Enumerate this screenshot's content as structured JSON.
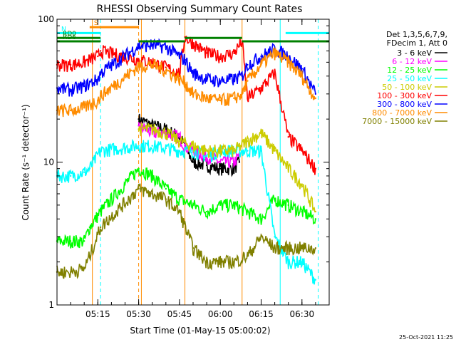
{
  "chart_data": {
    "type": "line",
    "title": "RHESSI Observing Summary Count Rates",
    "xlabel": "Start Time (01-May-15 05:00:02)",
    "ylabel": "Count Rate (s⁻¹ detector⁻¹)",
    "footer_timestamp": "25-Oct-2021 11:25",
    "y_scale": "log",
    "ylim": [
      1,
      100
    ],
    "xlim": [
      "05:00",
      "06:40"
    ],
    "x_ticks": [
      "05:15",
      "05:30",
      "05:45",
      "06:00",
      "06:15",
      "06:30"
    ],
    "y_ticks": [
      "1",
      "10",
      "100"
    ],
    "grid": false,
    "legend_header": [
      "Det 1,3,5,6,7,9,",
      "FDecim 1, Att 0"
    ],
    "legend_position": "right",
    "series": [
      {
        "name": "3 - 6 keV",
        "color": "#000000",
        "x": [
          "05:30",
          "05:35",
          "05:40",
          "05:45",
          "05:47",
          "05:50",
          "05:55",
          "06:00",
          "06:05",
          "06:07"
        ],
        "values": [
          20,
          18,
          17,
          15,
          13,
          10,
          9.5,
          9,
          9,
          10
        ]
      },
      {
        "name": "6 - 12 keV",
        "color": "#ff00ff",
        "x": [
          "05:30",
          "05:35",
          "05:40",
          "05:45",
          "05:47",
          "05:50",
          "05:55",
          "06:00",
          "06:05",
          "06:07"
        ],
        "values": [
          18,
          16,
          16,
          15,
          13,
          12,
          11,
          10,
          10,
          11
        ]
      },
      {
        "name": "12 - 25 keV",
        "color": "#00ff00",
        "x": [
          "05:00",
          "05:05",
          "05:10",
          "05:12",
          "05:16",
          "05:30",
          "05:35",
          "05:40",
          "05:45",
          "05:50",
          "05:55",
          "06:00",
          "06:05",
          "06:10",
          "06:15",
          "06:20",
          "06:25",
          "06:30",
          "06:35"
        ],
        "values": [
          2.8,
          2.8,
          2.8,
          3.5,
          4.5,
          9,
          8,
          6.5,
          5.5,
          5,
          4.5,
          5,
          5,
          4.5,
          4,
          5.5,
          5,
          4.5,
          4
        ]
      },
      {
        "name": "25 - 50 keV",
        "color": "#00ffff",
        "x": [
          "05:00",
          "05:05",
          "05:10",
          "05:12",
          "05:16",
          "05:30",
          "05:35",
          "05:40",
          "05:45",
          "05:50",
          "05:55",
          "06:00",
          "06:05",
          "06:10",
          "06:15",
          "06:20",
          "06:25",
          "06:30",
          "06:35"
        ],
        "values": [
          8,
          8,
          8.5,
          9,
          12,
          13,
          13,
          12.5,
          12,
          12,
          11,
          12,
          12,
          12,
          12,
          3,
          2,
          2,
          1.5
        ]
      },
      {
        "name": "50 - 100 keV",
        "color": "#cccc00",
        "x": [
          "05:30",
          "05:35",
          "05:40",
          "05:45",
          "05:50",
          "05:55",
          "06:00",
          "06:05",
          "06:10",
          "06:15",
          "06:20",
          "06:25",
          "06:30",
          "06:35"
        ],
        "values": [
          17,
          17,
          16,
          14,
          13,
          12,
          12,
          12,
          14,
          16,
          12,
          9,
          7,
          4.5
        ]
      },
      {
        "name": "100 - 300 keV",
        "color": "#ff0000",
        "x": [
          "05:00",
          "05:05",
          "05:10",
          "05:15",
          "05:16",
          "05:30",
          "05:35",
          "05:40",
          "05:45",
          "05:47",
          "05:50",
          "05:55",
          "06:00",
          "06:05",
          "06:08",
          "06:10",
          "06:15",
          "06:20",
          "06:25",
          "06:30",
          "06:35"
        ],
        "values": [
          48,
          48,
          50,
          55,
          60,
          52,
          50,
          46,
          42,
          75,
          68,
          58,
          55,
          58,
          70,
          28,
          33,
          42,
          15,
          12,
          9
        ]
      },
      {
        "name": "300 - 800 keV",
        "color": "#0000ff",
        "x": [
          "05:00",
          "05:05",
          "05:10",
          "05:15",
          "05:16",
          "05:30",
          "05:35",
          "05:40",
          "05:45",
          "05:47",
          "05:50",
          "05:55",
          "06:00",
          "06:05",
          "06:08",
          "06:10",
          "06:15",
          "06:20",
          "06:25",
          "06:30",
          "06:35"
        ],
        "values": [
          33,
          32,
          34,
          38,
          42,
          65,
          66,
          64,
          55,
          52,
          42,
          38,
          37,
          38,
          40,
          48,
          55,
          62,
          55,
          45,
          30
        ]
      },
      {
        "name": "800 - 7000 keV",
        "color": "#ff8c00",
        "x": [
          "05:00",
          "05:05",
          "05:10",
          "05:15",
          "05:16",
          "05:30",
          "05:35",
          "05:40",
          "05:45",
          "05:47",
          "05:50",
          "05:55",
          "06:00",
          "06:05",
          "06:08",
          "06:10",
          "06:15",
          "06:20",
          "06:25",
          "06:30",
          "06:35"
        ],
        "values": [
          23,
          23,
          24,
          27,
          29,
          47,
          48,
          44,
          38,
          36,
          30,
          28,
          27,
          28,
          30,
          37,
          48,
          58,
          50,
          40,
          28
        ]
      },
      {
        "name": "7000 - 15000 keV",
        "color": "#808000",
        "x": [
          "05:00",
          "05:05",
          "05:10",
          "05:12",
          "05:16",
          "05:30",
          "05:35",
          "05:40",
          "05:45",
          "05:50",
          "05:55",
          "06:00",
          "06:05",
          "06:10",
          "06:15",
          "06:20",
          "06:25",
          "06:30",
          "06:35"
        ],
        "values": [
          1.7,
          1.7,
          1.8,
          2.2,
          3.5,
          6.5,
          6,
          5.5,
          4.5,
          2.5,
          2,
          2,
          2,
          2.2,
          3,
          2.5,
          2.5,
          2.5,
          2.5
        ]
      }
    ],
    "flag_bars": [
      {
        "label": "S",
        "color": "#ff8c00",
        "x_start": "05:12",
        "x_end": "05:30",
        "y": 88
      },
      {
        "label": "N",
        "color": "#00ffff",
        "x_start": "05:00",
        "x_end": "05:16",
        "y": 80
      },
      {
        "label": "",
        "color": "#00ffff",
        "x_start": "06:24",
        "x_end": "06:40",
        "y": 80
      },
      {
        "label": "RD0",
        "color": "#008000",
        "x_start": "05:00",
        "x_end": "05:16",
        "y": 74
      },
      {
        "label": "",
        "color": "#008000",
        "x_start": "05:30",
        "x_end": "05:47",
        "y": 70
      },
      {
        "label": "",
        "color": "#008000",
        "x_start": "05:47",
        "x_end": "06:08",
        "y": 74
      },
      {
        "label": "",
        "color": "#008000",
        "x_start": "06:08",
        "x_end": "06:40",
        "y": 70
      },
      {
        "label": "RD6",
        "color": "#008000",
        "x_start": "05:00",
        "x_end": "05:16",
        "y": 70
      }
    ],
    "vertical_markers": [
      {
        "x": "05:13",
        "color": "#ff8c00",
        "style": "solid"
      },
      {
        "x": "05:16",
        "color": "#00ffff",
        "style": "dashed"
      },
      {
        "x": "05:30",
        "color": "#ff8c00",
        "style": "dashed"
      },
      {
        "x": "05:31",
        "color": "#ff8c00",
        "style": "solid"
      },
      {
        "x": "05:47",
        "color": "#ff8c00",
        "style": "solid"
      },
      {
        "x": "06:08",
        "color": "#ff8c00",
        "style": "solid"
      },
      {
        "x": "06:22",
        "color": "#00ffff",
        "style": "solid"
      },
      {
        "x": "06:36",
        "color": "#00ffff",
        "style": "dashed"
      }
    ]
  }
}
